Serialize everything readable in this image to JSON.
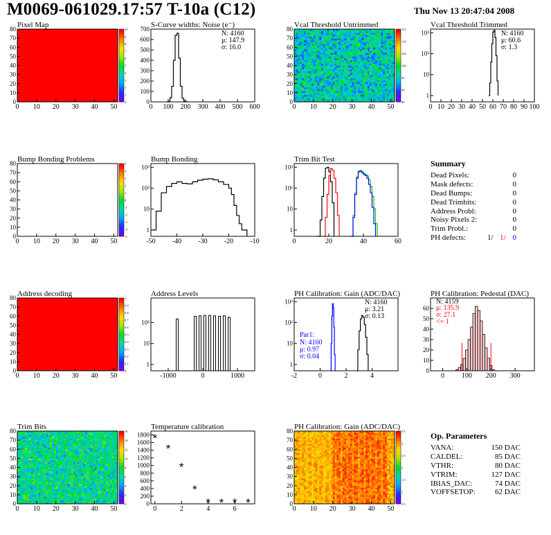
{
  "header": {
    "title": "M0069-061029.17:57 T-10a (C12)",
    "datetime": "Thu Nov 13 20:47:04 2008"
  },
  "colors": {
    "hist": "#000000",
    "fill_red": "#ff0000",
    "blue": "#0000ff",
    "green": "#00cc00",
    "red": "#ff0000"
  },
  "chart_data": [
    {
      "type": "heatmap",
      "title": "Pixel Map",
      "xlim": [
        0,
        52
      ],
      "ylim": [
        0,
        80
      ],
      "x_ticks": [
        "0",
        "10",
        "20",
        "30",
        "40",
        "50"
      ],
      "y_ticks": [
        "0",
        "10",
        "20",
        "30",
        "40",
        "50",
        "60",
        "70",
        "80"
      ],
      "z_ticks": [
        "0",
        "1",
        "2",
        "3",
        "4",
        "5",
        "6",
        "7",
        "8",
        "9",
        "10"
      ],
      "fill": "uniform-red"
    },
    {
      "type": "line",
      "title": "S-Curve widths: Noise (e⁻)",
      "xlim": [
        0,
        600
      ],
      "ylim": [
        0,
        700
      ],
      "x_ticks": [
        "0",
        "100",
        "200",
        "300",
        "400",
        "500",
        "600"
      ],
      "y_ticks": [
        "0",
        "100",
        "200",
        "300",
        "400",
        "500",
        "600",
        "700"
      ],
      "stats": [
        "N: 4160",
        "μ: 147.9",
        "σ: 16.0"
      ],
      "x": [
        90,
        100,
        110,
        120,
        130,
        140,
        150,
        160,
        170,
        180,
        190,
        200,
        210
      ],
      "y": [
        0,
        5,
        40,
        150,
        400,
        640,
        660,
        420,
        150,
        35,
        8,
        2,
        0
      ]
    },
    {
      "type": "heatmap",
      "title": "Vcal Threshold Untrimmed",
      "xlim": [
        0,
        52
      ],
      "ylim": [
        0,
        80
      ],
      "x_ticks": [
        "0",
        "10",
        "20",
        "30",
        "40",
        "50"
      ],
      "y_ticks": [
        "0",
        "10",
        "20",
        "30",
        "40",
        "50",
        "60",
        "70",
        "80"
      ],
      "z_ticks": [
        "85",
        "90",
        "95",
        "100",
        "105",
        "110",
        "115"
      ],
      "fill": "noise-green"
    },
    {
      "type": "line",
      "title": "Vcal Threshold Trimmed",
      "log": true,
      "xlim": [
        0,
        100
      ],
      "ylim": [
        0.5,
        1500
      ],
      "x_ticks": [
        "0",
        "10",
        "20",
        "30",
        "40",
        "50",
        "60",
        "70",
        "80",
        "90",
        "100"
      ],
      "y_ticks": [
        "1",
        "10",
        "10²",
        "10³"
      ],
      "stats": [
        "N: 4160",
        "μ: 60.6",
        "σ:  1.3"
      ],
      "x": [
        56,
        57,
        58,
        59,
        60,
        61,
        62,
        63,
        64,
        65
      ],
      "y": [
        1,
        4,
        40,
        300,
        1100,
        1300,
        600,
        80,
        5,
        1
      ]
    },
    {
      "type": "heatmap",
      "title": "Bump Bonding Problems",
      "xlim": [
        0,
        52
      ],
      "ylim": [
        0,
        80
      ],
      "x_ticks": [
        "0",
        "10",
        "20",
        "30",
        "40",
        "50"
      ],
      "y_ticks": [
        "0",
        "10",
        "20",
        "30",
        "40",
        "50",
        "60",
        "70",
        "80"
      ],
      "z_ticks": [
        "-5",
        "-4",
        "-3",
        "-2",
        "-1",
        "0",
        "1",
        "2",
        "3",
        "4",
        "5"
      ],
      "fill": "empty"
    },
    {
      "type": "line",
      "title": "Bump Bonding",
      "log": true,
      "xlim": [
        -50,
        -10
      ],
      "ylim": [
        0.5,
        1500
      ],
      "x_ticks": [
        "-50",
        "-40",
        "-30",
        "-20",
        "-10"
      ],
      "y_ticks": [
        "1",
        "10",
        "10²",
        "10³"
      ],
      "x": [
        -50,
        -48,
        -46,
        -44,
        -42,
        -40,
        -38,
        -36,
        -34,
        -32,
        -30,
        -28,
        -26,
        -24,
        -22,
        -20,
        -19,
        -18,
        -17,
        -16,
        -15,
        -14,
        -13
      ],
      "y": [
        1,
        8,
        60,
        120,
        170,
        200,
        170,
        160,
        200,
        240,
        270,
        280,
        250,
        200,
        150,
        100,
        50,
        15,
        5,
        2,
        1,
        1,
        0.5
      ]
    },
    {
      "type": "line",
      "title": "Trim Bit Test",
      "log": true,
      "xlim": [
        0,
        60
      ],
      "ylim": [
        0.5,
        1500
      ],
      "x_ticks": [
        "0",
        "20",
        "40",
        "60"
      ],
      "y_ticks": [
        "1",
        "10",
        "10²",
        "10³"
      ],
      "series": [
        {
          "color": "#000000",
          "x": [
            13,
            15,
            16,
            17,
            18,
            19,
            20,
            21,
            22,
            23
          ],
          "y": [
            0.5,
            3,
            40,
            300,
            900,
            1000,
            600,
            200,
            20,
            0.5
          ]
        },
        {
          "color": "#ff0000",
          "x": [
            17,
            18,
            19,
            20,
            21,
            22,
            23,
            24,
            25,
            26
          ],
          "y": [
            0.5,
            4,
            50,
            400,
            850,
            700,
            300,
            60,
            5,
            0.5
          ]
        },
        {
          "color": "#00cc00",
          "x": [
            33,
            34,
            35,
            36,
            37,
            38,
            39,
            40,
            41,
            42,
            43,
            44,
            45,
            46,
            47,
            48
          ],
          "y": [
            0.5,
            5,
            60,
            350,
            650,
            700,
            600,
            500,
            450,
            380,
            250,
            120,
            40,
            10,
            2,
            0.5
          ]
        },
        {
          "color": "#0000ff",
          "x": [
            33,
            34,
            35,
            36,
            37,
            38,
            39,
            40,
            41,
            42,
            43,
            44,
            45,
            46,
            47
          ],
          "y": [
            0.5,
            4,
            50,
            300,
            600,
            650,
            550,
            450,
            400,
            300,
            150,
            60,
            12,
            2,
            0.5
          ]
        }
      ]
    },
    {
      "type": "heatmap",
      "title": "Address decoding",
      "xlim": [
        0,
        52
      ],
      "ylim": [
        0,
        80
      ],
      "x_ticks": [
        "0",
        "10",
        "20",
        "30",
        "40",
        "50"
      ],
      "y_ticks": [
        "0",
        "10",
        "20",
        "30",
        "40",
        "50",
        "60",
        "70",
        "80"
      ],
      "z_ticks": [
        "0",
        "0.1",
        "0.2",
        "0.3",
        "0.4",
        "0.5",
        "0.6",
        "0.7",
        "0.8",
        "0.9",
        "1"
      ],
      "fill": "uniform-red"
    },
    {
      "type": "line",
      "title": "Address Levels",
      "log": true,
      "xlim": [
        -1500,
        1500
      ],
      "ylim": [
        0.5,
        1500
      ],
      "x_ticks": [
        "-1000",
        "0",
        "1000"
      ],
      "y_ticks": [
        "1",
        "10",
        "10²"
      ],
      "peaks": [
        -740,
        -220,
        -80,
        60,
        200,
        340,
        480,
        620,
        760
      ],
      "peak_heights": [
        150,
        200,
        210,
        220,
        220,
        210,
        200,
        210,
        180
      ]
    },
    {
      "type": "line",
      "title": "PH Calibration: Gain (ADC/DAC)",
      "log": true,
      "xlim": [
        -2,
        6
      ],
      "ylim": [
        0.5,
        1500
      ],
      "x_ticks": [
        "-2",
        "0",
        "2",
        "4"
      ],
      "y_ticks": [
        "1",
        "10",
        "10²",
        "10³"
      ],
      "stats": [
        "N: 4160",
        "μ: 3.21",
        "σ: 0.13"
      ],
      "stats2_label": "Par1:",
      "stats2": [
        "N: 4160",
        "μ: 0.97",
        "σ: 0.04"
      ],
      "series": [
        {
          "color": "#000000",
          "x": [
            2.8,
            2.9,
            3.0,
            3.1,
            3.2,
            3.3,
            3.4,
            3.5,
            3.6,
            3.7
          ],
          "y": [
            0.5,
            5,
            40,
            150,
            220,
            180,
            80,
            20,
            3,
            0.5
          ]
        },
        {
          "color": "#0000ff",
          "x": [
            0.8,
            0.85,
            0.9,
            0.95,
            1.0,
            1.05,
            1.1,
            1.15
          ],
          "y": [
            0.5,
            10,
            200,
            800,
            500,
            60,
            3,
            0.5
          ]
        }
      ]
    },
    {
      "type": "bar",
      "title": "PH Calibration: Pedestal (DAC)",
      "xlim": [
        -50,
        380
      ],
      "ylim": [
        0,
        70
      ],
      "x_ticks": [
        "0",
        "100",
        "200",
        "300"
      ],
      "y_ticks": [
        "0",
        "10",
        "20",
        "30",
        "40",
        "50",
        "60"
      ],
      "stats": [
        "N: 4159"
      ],
      "stats_red": [
        "μ: 135.9",
        "σ: 27.1",
        "<= 1"
      ],
      "x": [
        60,
        70,
        80,
        90,
        100,
        110,
        120,
        130,
        140,
        150,
        160,
        170,
        180,
        190,
        200,
        210
      ],
      "y": [
        1,
        3,
        6,
        12,
        20,
        30,
        42,
        55,
        62,
        58,
        48,
        35,
        22,
        12,
        5,
        1
      ]
    },
    {
      "type": "heatmap",
      "title": "Trim Bits",
      "xlim": [
        0,
        52
      ],
      "ylim": [
        0,
        80
      ],
      "x_ticks": [
        "0",
        "10",
        "20",
        "30",
        "40",
        "50"
      ],
      "y_ticks": [
        "0",
        "10",
        "20",
        "30",
        "40",
        "50",
        "60",
        "70",
        "80"
      ],
      "z_ticks": [
        "0",
        "2",
        "4",
        "6",
        "8",
        "10",
        "12",
        "14",
        "16"
      ],
      "fill": "noise-trim"
    },
    {
      "type": "scatter",
      "title": "Temperature calibration",
      "xlim": [
        -0.3,
        7.5
      ],
      "ylim": [
        0,
        1900
      ],
      "x_ticks": [
        "0",
        "2",
        "4",
        "6"
      ],
      "y_ticks": [
        "0",
        "200",
        "400",
        "600",
        "800",
        "1000",
        "1200",
        "1400",
        "1600",
        "1800"
      ],
      "x": [
        0,
        1,
        2,
        3,
        4,
        5,
        6,
        7
      ],
      "y": [
        1720,
        1450,
        970,
        380,
        40,
        40,
        40,
        40
      ]
    },
    {
      "type": "heatmap",
      "title": "PH Calibration: Gain (ADC/DAC)",
      "xlim": [
        0,
        52
      ],
      "ylim": [
        0,
        80
      ],
      "x_ticks": [
        "0",
        "10",
        "20",
        "30",
        "40",
        "50"
      ],
      "y_ticks": [
        "0",
        "10",
        "20",
        "30",
        "40",
        "50",
        "60",
        "70",
        "80"
      ],
      "z_ticks": [
        "0.5",
        "1",
        "1.5",
        "2",
        "2.5",
        "3",
        "3.5"
      ],
      "fill": "gain-stripes"
    }
  ],
  "summary": {
    "heading": "Summary",
    "rows": [
      {
        "label": "Dead Pixels:",
        "value": "0"
      },
      {
        "label": "Mask defects:",
        "value": "0"
      },
      {
        "label": "Dead Bumps:",
        "value": "0"
      },
      {
        "label": "Dead Trimbits:",
        "value": "0"
      },
      {
        "label": "Address Probl:",
        "value": "0"
      },
      {
        "label": "Noisy Pixels 2:",
        "value": "0"
      },
      {
        "label": "Trim Probl.:",
        "value": "0"
      }
    ],
    "ph_label": "PH defects:",
    "ph_values": [
      "1/",
      "1/",
      "0"
    ]
  },
  "op_params": {
    "heading": "Op. Parameters",
    "rows": [
      {
        "label": "VANA:",
        "value": "150 DAC"
      },
      {
        "label": "CALDEL:",
        "value": "85 DAC"
      },
      {
        "label": "VTHR:",
        "value": "80 DAC"
      },
      {
        "label": "VTRIM:",
        "value": "127 DAC"
      },
      {
        "label": "IBIAS_DAC:",
        "value": "74 DAC"
      },
      {
        "label": "VOFFSETOP:",
        "value": "62 DAC"
      }
    ]
  }
}
